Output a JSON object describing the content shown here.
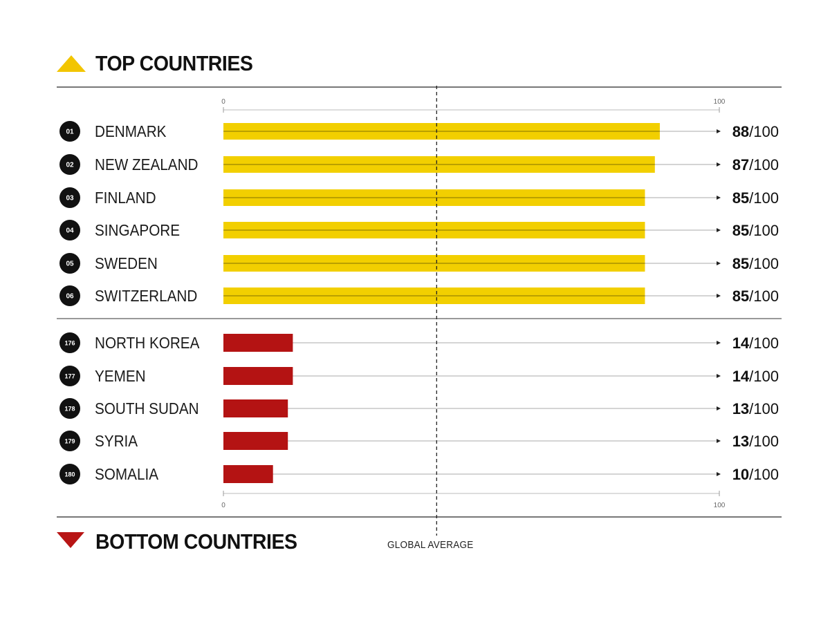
{
  "headings": {
    "top": "TOP COUNTRIES",
    "bottom": "BOTTOM COUNTRIES",
    "reference_line": "GLOBAL AVERAGE"
  },
  "colors": {
    "top_bar": "#f2cf00",
    "bottom_bar": "#b41313",
    "badge": "#111111"
  },
  "chart_data": {
    "type": "bar",
    "orientation": "horizontal",
    "xlim": [
      0,
      100
    ],
    "axis_ticks": [
      "0",
      "100"
    ],
    "score_suffix": "/100",
    "reference_value": 43,
    "groups": [
      {
        "name": "TOP COUNTRIES",
        "rows": [
          {
            "rank": "01",
            "country": "DENMARK",
            "score": 88
          },
          {
            "rank": "02",
            "country": "NEW ZEALAND",
            "score": 87
          },
          {
            "rank": "03",
            "country": "FINLAND",
            "score": 85
          },
          {
            "rank": "04",
            "country": "SINGAPORE",
            "score": 85
          },
          {
            "rank": "05",
            "country": "SWEDEN",
            "score": 85
          },
          {
            "rank": "06",
            "country": "SWITZERLAND",
            "score": 85
          }
        ]
      },
      {
        "name": "BOTTOM COUNTRIES",
        "rows": [
          {
            "rank": "176",
            "country": "NORTH KOREA",
            "score": 14
          },
          {
            "rank": "177",
            "country": "YEMEN",
            "score": 14
          },
          {
            "rank": "178",
            "country": "SOUTH SUDAN",
            "score": 13
          },
          {
            "rank": "179",
            "country": "SYRIA",
            "score": 13
          },
          {
            "rank": "180",
            "country": "SOMALIA",
            "score": 10
          }
        ]
      }
    ]
  }
}
